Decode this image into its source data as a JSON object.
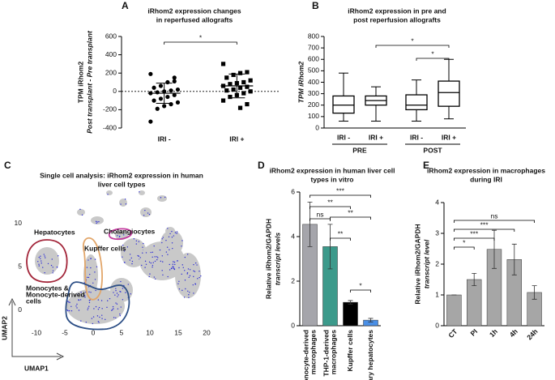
{
  "chart_data": [
    {
      "type": "dot",
      "panel": "A",
      "title": [
        "iRhom2 expression changes",
        "in reperfused allografts"
      ],
      "ylabel": [
        "TPM iRhom2",
        "Post transplant - Pre transplant"
      ],
      "categories": [
        "IRI -",
        "IRI +"
      ],
      "groups": [
        {
          "values": [
            190,
            110,
            100,
            60,
            40,
            20,
            10,
            0,
            -10,
            -20,
            -40,
            -60,
            -80,
            -100,
            -120,
            -140,
            -160,
            -190,
            -330,
            150
          ],
          "mean": -20,
          "sd": 110
        },
        {
          "values": [
            300,
            210,
            200,
            180,
            150,
            120,
            100,
            90,
            80,
            60,
            50,
            40,
            20,
            10,
            0,
            -20,
            -40,
            -60,
            -100,
            -140,
            -180
          ],
          "mean": 60,
          "sd": 130
        }
      ],
      "ylim": [
        -400,
        600
      ],
      "yticks": [
        -400,
        -200,
        0,
        200,
        400,
        600
      ],
      "significance": [
        "*"
      ],
      "color": "#000000"
    },
    {
      "type": "box",
      "panel": "B",
      "title": [
        "iRhom2 expression in pre and",
        "post reperfusion allografts"
      ],
      "ylabel": [
        "TPM iRhom2"
      ],
      "categories": [
        "IRI -",
        "IRI +",
        "IRI -",
        "IRI +"
      ],
      "groups": [
        "PRE",
        "POST"
      ],
      "min": [
        60,
        60,
        60,
        80
      ],
      "q1": [
        130,
        200,
        160,
        190
      ],
      "median": [
        200,
        240,
        200,
        310
      ],
      "q3": [
        280,
        280,
        290,
        410
      ],
      "max": [
        480,
        360,
        420,
        600
      ],
      "ylim": [
        0,
        800
      ],
      "yticks": [
        0,
        100,
        200,
        300,
        400,
        500,
        600,
        700,
        800
      ],
      "significance": [
        "*",
        "*"
      ],
      "color": "#000000"
    },
    {
      "type": "umap",
      "panel": "C",
      "title": [
        "Single cell analysis: iRhom2 expression in human",
        "liver cell types"
      ],
      "xlabel": "UMAP1",
      "ylabel": "UMAP2",
      "xlim": [
        -12,
        23
      ],
      "xticks": [
        -10,
        -5,
        0,
        5,
        10,
        15,
        20
      ],
      "ylim": [
        -3,
        14
      ],
      "yticks": [
        0,
        5,
        10
      ],
      "annotations": [
        {
          "text": [
            "Hepatocytes"
          ],
          "color": "#a3263a"
        },
        {
          "text": [
            "Kupffer cells"
          ],
          "color": "#e2a66a"
        },
        {
          "text": [
            "Cholangiocytes"
          ],
          "color": "#c23b9e"
        },
        {
          "text": [
            "Monocytes &",
            "Monocyte-derived",
            "cells"
          ],
          "color": "#2d4f86"
        }
      ]
    },
    {
      "type": "bar",
      "panel": "D",
      "title": [
        "iRhom2 expression in human liver cell",
        "types in vitro"
      ],
      "ylabel": [
        "Relative iRhom2/GAPDH",
        "transcript levels"
      ],
      "categories": [
        [
          "Monocyte-derived",
          "macrophages"
        ],
        [
          "THP-1-derived",
          "macrophages"
        ],
        [
          "Kupffer cells"
        ],
        [
          "Primary hepatocytes"
        ]
      ],
      "values": [
        4.55,
        3.55,
        1.05,
        0.25
      ],
      "errors": [
        1.0,
        1.0,
        0.08,
        0.08
      ],
      "colors": [
        "#a5a5ab",
        "#3c9a8b",
        "#000000",
        "#4a8fe6"
      ],
      "ylim": [
        0,
        6
      ],
      "yticks": [
        0,
        2,
        4,
        6
      ],
      "significance": [
        "***",
        "**",
        "ns",
        "**",
        "**",
        "*"
      ]
    },
    {
      "type": "bar",
      "panel": "E",
      "title": [
        "iRhom2 expression in macrophages",
        "during IRI"
      ],
      "ylabel": [
        "Relative iRhom2/GAPDH",
        "transcript level"
      ],
      "categories": [
        [
          "CT"
        ],
        [
          "PI"
        ],
        [
          "1h"
        ],
        [
          "4h"
        ],
        [
          "24h"
        ]
      ],
      "values": [
        1.0,
        1.5,
        2.48,
        2.15,
        1.08
      ],
      "errors": [
        0,
        0.2,
        0.62,
        0.5,
        0.22
      ],
      "color": "#a6a6a6",
      "ylim": [
        0,
        4
      ],
      "yticks": [
        0,
        1,
        2,
        3,
        4
      ],
      "significance": [
        "ns",
        "***",
        "***",
        "*"
      ]
    }
  ]
}
